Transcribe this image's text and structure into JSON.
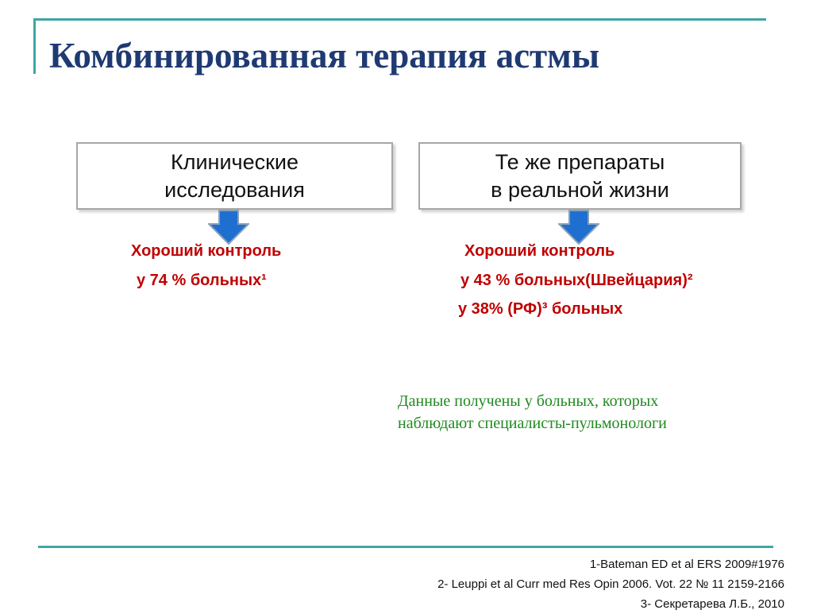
{
  "title": "Комбинированная терапия астмы",
  "left": {
    "box_lines": [
      "Клинические",
      "исследования"
    ],
    "result_line1": "Хороший контроль",
    "result_line2": "у 74 % больных¹"
  },
  "right": {
    "box_lines": [
      "Те же препараты",
      "в реальной жизни"
    ],
    "result_line1": "Хороший контроль",
    "result_line2": "у 43 % больных(Швейцария)²",
    "result_line3": "у 38% (РФ)³ больных"
  },
  "note": {
    "line1": "Данные получены у больных, которых",
    "line2": "наблюдают специалисты-пульмонологи"
  },
  "references": [
    "1-Bateman ED et al ERS 2009#1976",
    "2- Leuppi  et al  Curr med Res Opin 2006. Vot. 22 № 11 2159-2166",
    "3- Секретарева Л.Б., 2010"
  ],
  "colors": {
    "title": "#1f3a73",
    "accent_line": "#3fa6a6",
    "result_text": "#c00000",
    "note_text": "#1e8a1e",
    "arrow_fill": "#1f6fd1"
  },
  "icons": {
    "down_arrow": "down-arrow-icon"
  }
}
